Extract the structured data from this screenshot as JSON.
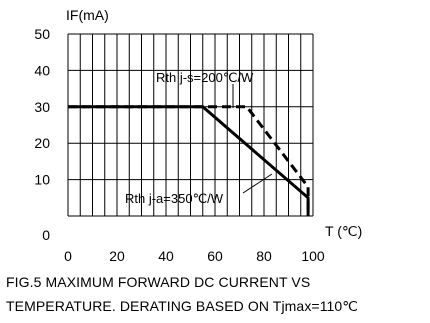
{
  "chart_data": {
    "type": "line",
    "title": "",
    "ylabel": "IF(mA)",
    "xlabel": "T (℃)",
    "xlim": [
      0,
      100
    ],
    "ylim": [
      0,
      50
    ],
    "x_ticks": [
      0,
      20,
      40,
      60,
      80,
      100
    ],
    "y_ticks": [
      0,
      10,
      20,
      30,
      40,
      50
    ],
    "grid": true,
    "series": [
      {
        "name": "Rth j-a=350℃/W",
        "style": "solid",
        "points": [
          [
            0,
            30
          ],
          [
            55,
            30
          ],
          [
            98,
            5
          ],
          [
            98,
            0
          ]
        ]
      },
      {
        "name": "Rth j-s=200℃/W",
        "style": "dashed",
        "points": [
          [
            0,
            30
          ],
          [
            73,
            30
          ],
          [
            98,
            8
          ],
          [
            98,
            0
          ]
        ]
      }
    ],
    "annotations": [
      {
        "text": "Rth j-s=200℃/W",
        "series": "Rth j-s=200℃/W"
      },
      {
        "text": "Rth j-a=350℃/W",
        "series": "Rth j-a=350℃/W"
      }
    ]
  },
  "caption": {
    "line1": "FIG.5 MAXIMUM FORWARD DC CURRENT VS",
    "line2": "TEMPERATURE. DERATING BASED ON Tjmax=110℃"
  }
}
